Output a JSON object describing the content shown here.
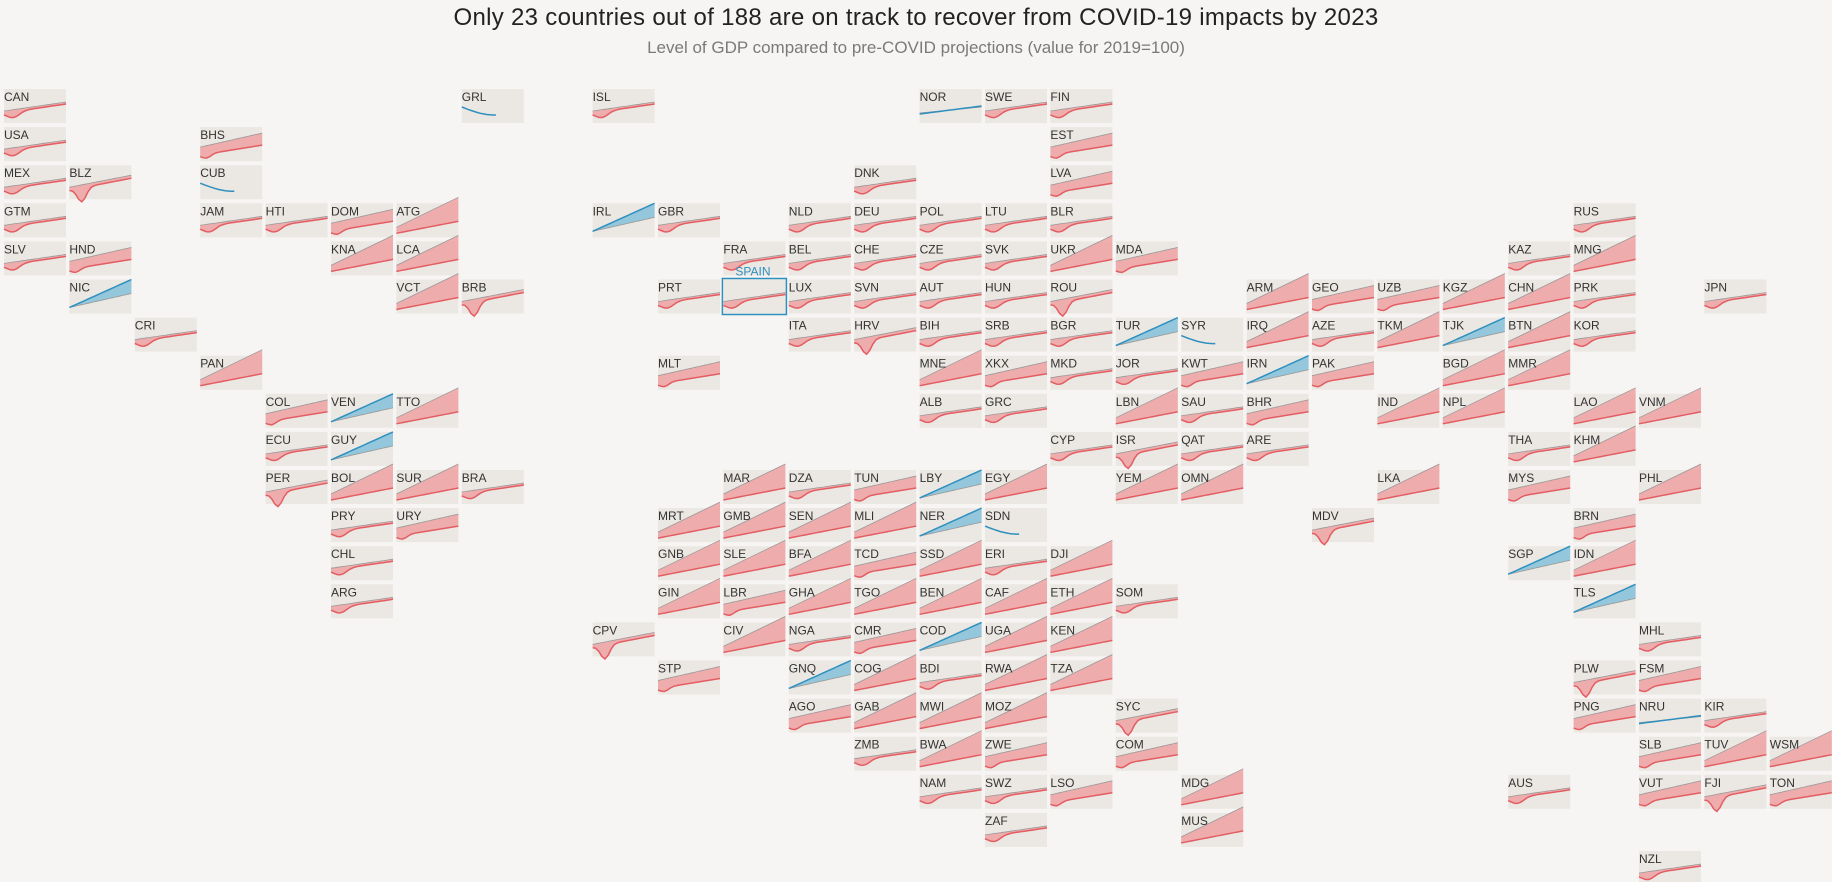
{
  "title": "Only 23 countries out of 188 are on track to recover from COVID-19 impacts by 2023",
  "subtitle": "Level of GDP compared to pre-COVID projections (value for 2019=100)",
  "highlight_label": "SPAIN",
  "colors": {
    "below": "#e35d63",
    "below_fill": "#eea6a6",
    "above": "#2e90bf",
    "above_fill": "#8cc3dc",
    "cell": "#ebe7e2",
    "highlight": "#2e90bf"
  },
  "chart_data": {
    "type": "area",
    "layout": "tile-map",
    "years_shown": "2019-2023",
    "series": [
      {
        "code": "CAN",
        "col": 0,
        "row": 0,
        "shape": "w"
      },
      {
        "code": "GRL",
        "col": 7,
        "row": 0,
        "shape": "g"
      },
      {
        "code": "ISL",
        "col": 9,
        "row": 0,
        "shape": "w"
      },
      {
        "code": "NOR",
        "col": 14,
        "row": 0,
        "shape": "c"
      },
      {
        "code": "SWE",
        "col": 15,
        "row": 0,
        "shape": "w"
      },
      {
        "code": "FIN",
        "col": 16,
        "row": 0,
        "shape": "w"
      },
      {
        "code": "USA",
        "col": 0,
        "row": 1,
        "shape": "w"
      },
      {
        "code": "BHS",
        "col": 3,
        "row": 1,
        "shape": "m"
      },
      {
        "code": "EST",
        "col": 16,
        "row": 1,
        "shape": "m"
      },
      {
        "code": "MEX",
        "col": 0,
        "row": 2,
        "shape": "w"
      },
      {
        "code": "BLZ",
        "col": 1,
        "row": 2,
        "shape": "d"
      },
      {
        "code": "CUB",
        "col": 3,
        "row": 2,
        "shape": "g"
      },
      {
        "code": "DNK",
        "col": 13,
        "row": 2,
        "shape": "w"
      },
      {
        "code": "LVA",
        "col": 16,
        "row": 2,
        "shape": "m"
      },
      {
        "code": "GTM",
        "col": 0,
        "row": 3,
        "shape": "w"
      },
      {
        "code": "JAM",
        "col": 3,
        "row": 3,
        "shape": "w"
      },
      {
        "code": "HTI",
        "col": 4,
        "row": 3,
        "shape": "w"
      },
      {
        "code": "DOM",
        "col": 5,
        "row": 3,
        "shape": "m"
      },
      {
        "code": "ATG",
        "col": 6,
        "row": 3,
        "shape": "b"
      },
      {
        "code": "IRL",
        "col": 9,
        "row": 3,
        "shape": "u"
      },
      {
        "code": "GBR",
        "col": 10,
        "row": 3,
        "shape": "w"
      },
      {
        "code": "NLD",
        "col": 12,
        "row": 3,
        "shape": "w"
      },
      {
        "code": "DEU",
        "col": 13,
        "row": 3,
        "shape": "w"
      },
      {
        "code": "POL",
        "col": 14,
        "row": 3,
        "shape": "w"
      },
      {
        "code": "LTU",
        "col": 15,
        "row": 3,
        "shape": "w"
      },
      {
        "code": "BLR",
        "col": 16,
        "row": 3,
        "shape": "w"
      },
      {
        "code": "RUS",
        "col": 24,
        "row": 3,
        "shape": "w"
      },
      {
        "code": "SLV",
        "col": 0,
        "row": 4,
        "shape": "w"
      },
      {
        "code": "HND",
        "col": 1,
        "row": 4,
        "shape": "m"
      },
      {
        "code": "KNA",
        "col": 5,
        "row": 4,
        "shape": "b"
      },
      {
        "code": "LCA",
        "col": 6,
        "row": 4,
        "shape": "b"
      },
      {
        "code": "FRA",
        "col": 11,
        "row": 4,
        "shape": "w"
      },
      {
        "code": "BEL",
        "col": 12,
        "row": 4,
        "shape": "w"
      },
      {
        "code": "CHE",
        "col": 13,
        "row": 4,
        "shape": "w"
      },
      {
        "code": "CZE",
        "col": 14,
        "row": 4,
        "shape": "w"
      },
      {
        "code": "SVK",
        "col": 15,
        "row": 4,
        "shape": "w"
      },
      {
        "code": "UKR",
        "col": 16,
        "row": 4,
        "shape": "b"
      },
      {
        "code": "MDA",
        "col": 17,
        "row": 4,
        "shape": "m"
      },
      {
        "code": "KAZ",
        "col": 23,
        "row": 4,
        "shape": "w"
      },
      {
        "code": "MNG",
        "col": 24,
        "row": 4,
        "shape": "b"
      },
      {
        "code": "NIC",
        "col": 1,
        "row": 5,
        "shape": "u"
      },
      {
        "code": "VCT",
        "col": 6,
        "row": 5,
        "shape": "b"
      },
      {
        "code": "BRB",
        "col": 7,
        "row": 5,
        "shape": "d"
      },
      {
        "code": "PRT",
        "col": 10,
        "row": 5,
        "shape": "w"
      },
      {
        "code": "ESP",
        "col": 11,
        "row": 5,
        "shape": "w"
      },
      {
        "code": "LUX",
        "col": 12,
        "row": 5,
        "shape": "w"
      },
      {
        "code": "SVN",
        "col": 13,
        "row": 5,
        "shape": "w"
      },
      {
        "code": "AUT",
        "col": 14,
        "row": 5,
        "shape": "w"
      },
      {
        "code": "HUN",
        "col": 15,
        "row": 5,
        "shape": "w"
      },
      {
        "code": "ROU",
        "col": 16,
        "row": 5,
        "shape": "d"
      },
      {
        "code": "ARM",
        "col": 19,
        "row": 5,
        "shape": "b"
      },
      {
        "code": "GEO",
        "col": 20,
        "row": 5,
        "shape": "m"
      },
      {
        "code": "UZB",
        "col": 21,
        "row": 5,
        "shape": "m"
      },
      {
        "code": "KGZ",
        "col": 22,
        "row": 5,
        "shape": "b"
      },
      {
        "code": "CHN",
        "col": 23,
        "row": 5,
        "shape": "b"
      },
      {
        "code": "PRK",
        "col": 24,
        "row": 5,
        "shape": "w"
      },
      {
        "code": "JPN",
        "col": 26,
        "row": 5,
        "shape": "w"
      },
      {
        "code": "CRI",
        "col": 2,
        "row": 6,
        "shape": "w"
      },
      {
        "code": "ITA",
        "col": 12,
        "row": 6,
        "shape": "w"
      },
      {
        "code": "HRV",
        "col": 13,
        "row": 6,
        "shape": "d"
      },
      {
        "code": "BIH",
        "col": 14,
        "row": 6,
        "shape": "w"
      },
      {
        "code": "SRB",
        "col": 15,
        "row": 6,
        "shape": "w"
      },
      {
        "code": "BGR",
        "col": 16,
        "row": 6,
        "shape": "w"
      },
      {
        "code": "TUR",
        "col": 17,
        "row": 6,
        "shape": "u"
      },
      {
        "code": "SYR",
        "col": 18,
        "row": 6,
        "shape": "g"
      },
      {
        "code": "IRQ",
        "col": 19,
        "row": 6,
        "shape": "b"
      },
      {
        "code": "AZE",
        "col": 20,
        "row": 6,
        "shape": "w"
      },
      {
        "code": "TKM",
        "col": 21,
        "row": 6,
        "shape": "b"
      },
      {
        "code": "TJK",
        "col": 22,
        "row": 6,
        "shape": "u"
      },
      {
        "code": "BTN",
        "col": 23,
        "row": 6,
        "shape": "b"
      },
      {
        "code": "KOR",
        "col": 24,
        "row": 6,
        "shape": "w"
      },
      {
        "code": "PAN",
        "col": 3,
        "row": 7,
        "shape": "b"
      },
      {
        "code": "MLT",
        "col": 10,
        "row": 7,
        "shape": "m"
      },
      {
        "code": "MNE",
        "col": 14,
        "row": 7,
        "shape": "b"
      },
      {
        "code": "XKX",
        "col": 15,
        "row": 7,
        "shape": "m"
      },
      {
        "code": "MKD",
        "col": 16,
        "row": 7,
        "shape": "w"
      },
      {
        "code": "JOR",
        "col": 17,
        "row": 7,
        "shape": "w"
      },
      {
        "code": "KWT",
        "col": 18,
        "row": 7,
        "shape": "m"
      },
      {
        "code": "IRN",
        "col": 19,
        "row": 7,
        "shape": "u"
      },
      {
        "code": "PAK",
        "col": 20,
        "row": 7,
        "shape": "m"
      },
      {
        "code": "BGD",
        "col": 22,
        "row": 7,
        "shape": "b"
      },
      {
        "code": "MMR",
        "col": 23,
        "row": 7,
        "shape": "b"
      },
      {
        "code": "COL",
        "col": 4,
        "row": 8,
        "shape": "m"
      },
      {
        "code": "VEN",
        "col": 5,
        "row": 8,
        "shape": "u"
      },
      {
        "code": "TTO",
        "col": 6,
        "row": 8,
        "shape": "b"
      },
      {
        "code": "ALB",
        "col": 14,
        "row": 8,
        "shape": "w"
      },
      {
        "code": "GRC",
        "col": 15,
        "row": 8,
        "shape": "w"
      },
      {
        "code": "LBN",
        "col": 17,
        "row": 8,
        "shape": "b"
      },
      {
        "code": "SAU",
        "col": 18,
        "row": 8,
        "shape": "w"
      },
      {
        "code": "BHR",
        "col": 19,
        "row": 8,
        "shape": "m"
      },
      {
        "code": "IND",
        "col": 21,
        "row": 8,
        "shape": "b"
      },
      {
        "code": "NPL",
        "col": 22,
        "row": 8,
        "shape": "b"
      },
      {
        "code": "LAO",
        "col": 24,
        "row": 8,
        "shape": "b"
      },
      {
        "code": "VNM",
        "col": 25,
        "row": 8,
        "shape": "b"
      },
      {
        "code": "ECU",
        "col": 4,
        "row": 9,
        "shape": "w"
      },
      {
        "code": "GUY",
        "col": 5,
        "row": 9,
        "shape": "u"
      },
      {
        "code": "CYP",
        "col": 16,
        "row": 9,
        "shape": "w"
      },
      {
        "code": "ISR",
        "col": 17,
        "row": 9,
        "shape": "d"
      },
      {
        "code": "QAT",
        "col": 18,
        "row": 9,
        "shape": "w"
      },
      {
        "code": "ARE",
        "col": 19,
        "row": 9,
        "shape": "w"
      },
      {
        "code": "THA",
        "col": 23,
        "row": 9,
        "shape": "w"
      },
      {
        "code": "KHM",
        "col": 24,
        "row": 9,
        "shape": "b"
      },
      {
        "code": "PER",
        "col": 4,
        "row": 10,
        "shape": "d"
      },
      {
        "code": "BOL",
        "col": 5,
        "row": 10,
        "shape": "b"
      },
      {
        "code": "SUR",
        "col": 6,
        "row": 10,
        "shape": "b"
      },
      {
        "code": "BRA",
        "col": 7,
        "row": 10,
        "shape": "w"
      },
      {
        "code": "MAR",
        "col": 11,
        "row": 10,
        "shape": "b"
      },
      {
        "code": "DZA",
        "col": 12,
        "row": 10,
        "shape": "w"
      },
      {
        "code": "TUN",
        "col": 13,
        "row": 10,
        "shape": "m"
      },
      {
        "code": "LBY",
        "col": 14,
        "row": 10,
        "shape": "u"
      },
      {
        "code": "EGY",
        "col": 15,
        "row": 10,
        "shape": "b"
      },
      {
        "code": "YEM",
        "col": 17,
        "row": 10,
        "shape": "b"
      },
      {
        "code": "OMN",
        "col": 18,
        "row": 10,
        "shape": "b"
      },
      {
        "code": "LKA",
        "col": 21,
        "row": 10,
        "shape": "b"
      },
      {
        "code": "MYS",
        "col": 23,
        "row": 10,
        "shape": "m"
      },
      {
        "code": "PHL",
        "col": 25,
        "row": 10,
        "shape": "b"
      },
      {
        "code": "PRY",
        "col": 5,
        "row": 11,
        "shape": "w"
      },
      {
        "code": "URY",
        "col": 6,
        "row": 11,
        "shape": "m"
      },
      {
        "code": "MRT",
        "col": 10,
        "row": 11,
        "shape": "b"
      },
      {
        "code": "GMB",
        "col": 11,
        "row": 11,
        "shape": "b"
      },
      {
        "code": "SEN",
        "col": 12,
        "row": 11,
        "shape": "b"
      },
      {
        "code": "MLI",
        "col": 13,
        "row": 11,
        "shape": "b"
      },
      {
        "code": "NER",
        "col": 14,
        "row": 11,
        "shape": "u"
      },
      {
        "code": "SDN",
        "col": 15,
        "row": 11,
        "shape": "g"
      },
      {
        "code": "MDV",
        "col": 20,
        "row": 11,
        "shape": "d"
      },
      {
        "code": "BRN",
        "col": 24,
        "row": 11,
        "shape": "m"
      },
      {
        "code": "CHL",
        "col": 5,
        "row": 12,
        "shape": "w"
      },
      {
        "code": "GNB",
        "col": 10,
        "row": 12,
        "shape": "b"
      },
      {
        "code": "SLE",
        "col": 11,
        "row": 12,
        "shape": "b"
      },
      {
        "code": "BFA",
        "col": 12,
        "row": 12,
        "shape": "b"
      },
      {
        "code": "TCD",
        "col": 13,
        "row": 12,
        "shape": "m"
      },
      {
        "code": "SSD",
        "col": 14,
        "row": 12,
        "shape": "b"
      },
      {
        "code": "ERI",
        "col": 15,
        "row": 12,
        "shape": "w"
      },
      {
        "code": "DJI",
        "col": 16,
        "row": 12,
        "shape": "b"
      },
      {
        "code": "SGP",
        "col": 23,
        "row": 12,
        "shape": "u"
      },
      {
        "code": "IDN",
        "col": 24,
        "row": 12,
        "shape": "b"
      },
      {
        "code": "ARG",
        "col": 5,
        "row": 13,
        "shape": "w"
      },
      {
        "code": "GIN",
        "col": 10,
        "row": 13,
        "shape": "b"
      },
      {
        "code": "LBR",
        "col": 11,
        "row": 13,
        "shape": "m"
      },
      {
        "code": "GHA",
        "col": 12,
        "row": 13,
        "shape": "b"
      },
      {
        "code": "TGO",
        "col": 13,
        "row": 13,
        "shape": "b"
      },
      {
        "code": "BEN",
        "col": 14,
        "row": 13,
        "shape": "b"
      },
      {
        "code": "CAF",
        "col": 15,
        "row": 13,
        "shape": "b"
      },
      {
        "code": "ETH",
        "col": 16,
        "row": 13,
        "shape": "b"
      },
      {
        "code": "SOM",
        "col": 17,
        "row": 13,
        "shape": "w"
      },
      {
        "code": "TLS",
        "col": 24,
        "row": 13,
        "shape": "u"
      },
      {
        "code": "CPV",
        "col": 9,
        "row": 14,
        "shape": "d"
      },
      {
        "code": "CIV",
        "col": 11,
        "row": 14,
        "shape": "b"
      },
      {
        "code": "NGA",
        "col": 12,
        "row": 14,
        "shape": "w"
      },
      {
        "code": "CMR",
        "col": 13,
        "row": 14,
        "shape": "m"
      },
      {
        "code": "COD",
        "col": 14,
        "row": 14,
        "shape": "u"
      },
      {
        "code": "UGA",
        "col": 15,
        "row": 14,
        "shape": "b"
      },
      {
        "code": "KEN",
        "col": 16,
        "row": 14,
        "shape": "b"
      },
      {
        "code": "MHL",
        "col": 25,
        "row": 14,
        "shape": "w"
      },
      {
        "code": "STP",
        "col": 10,
        "row": 15,
        "shape": "m"
      },
      {
        "code": "GNQ",
        "col": 12,
        "row": 15,
        "shape": "u"
      },
      {
        "code": "COG",
        "col": 13,
        "row": 15,
        "shape": "b"
      },
      {
        "code": "BDI",
        "col": 14,
        "row": 15,
        "shape": "w"
      },
      {
        "code": "RWA",
        "col": 15,
        "row": 15,
        "shape": "b"
      },
      {
        "code": "TZA",
        "col": 16,
        "row": 15,
        "shape": "b"
      },
      {
        "code": "PLW",
        "col": 24,
        "row": 15,
        "shape": "d"
      },
      {
        "code": "FSM",
        "col": 25,
        "row": 15,
        "shape": "m"
      },
      {
        "code": "AGO",
        "col": 12,
        "row": 16,
        "shape": "m"
      },
      {
        "code": "GAB",
        "col": 13,
        "row": 16,
        "shape": "b"
      },
      {
        "code": "MWI",
        "col": 14,
        "row": 16,
        "shape": "b"
      },
      {
        "code": "MOZ",
        "col": 15,
        "row": 16,
        "shape": "b"
      },
      {
        "code": "SYC",
        "col": 17,
        "row": 16,
        "shape": "d"
      },
      {
        "code": "PNG",
        "col": 24,
        "row": 16,
        "shape": "m"
      },
      {
        "code": "NRU",
        "col": 25,
        "row": 16,
        "shape": "c"
      },
      {
        "code": "KIR",
        "col": 26,
        "row": 16,
        "shape": "w"
      },
      {
        "code": "ZMB",
        "col": 13,
        "row": 17,
        "shape": "w"
      },
      {
        "code": "BWA",
        "col": 14,
        "row": 17,
        "shape": "b"
      },
      {
        "code": "ZWE",
        "col": 15,
        "row": 17,
        "shape": "m"
      },
      {
        "code": "COM",
        "col": 17,
        "row": 17,
        "shape": "m"
      },
      {
        "code": "SLB",
        "col": 25,
        "row": 17,
        "shape": "m"
      },
      {
        "code": "TUV",
        "col": 26,
        "row": 17,
        "shape": "b"
      },
      {
        "code": "WSM",
        "col": 27,
        "row": 17,
        "shape": "b"
      },
      {
        "code": "NAM",
        "col": 14,
        "row": 18,
        "shape": "w"
      },
      {
        "code": "SWZ",
        "col": 15,
        "row": 18,
        "shape": "w"
      },
      {
        "code": "LSO",
        "col": 16,
        "row": 18,
        "shape": "m"
      },
      {
        "code": "MDG",
        "col": 18,
        "row": 18,
        "shape": "b"
      },
      {
        "code": "AUS",
        "col": 23,
        "row": 18,
        "shape": "w"
      },
      {
        "code": "VUT",
        "col": 25,
        "row": 18,
        "shape": "m"
      },
      {
        "code": "FJI",
        "col": 26,
        "row": 18,
        "shape": "d"
      },
      {
        "code": "TON",
        "col": 27,
        "row": 18,
        "shape": "m"
      },
      {
        "code": "ZAF",
        "col": 15,
        "row": 19,
        "shape": "w"
      },
      {
        "code": "MUS",
        "col": 18,
        "row": 19,
        "shape": "b"
      },
      {
        "code": "NZL",
        "col": 25,
        "row": 20,
        "shape": "w"
      }
    ]
  }
}
